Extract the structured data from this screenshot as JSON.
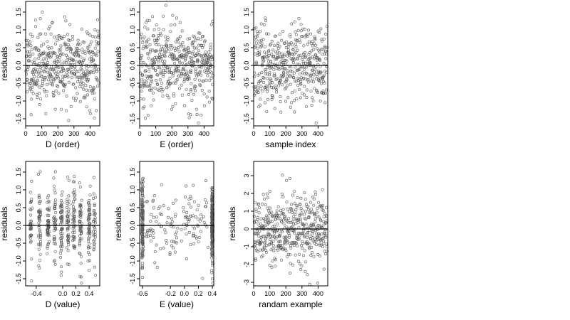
{
  "chart_data": [
    {
      "type": "scatter",
      "xlabel": "D (order)",
      "ylabel": "residuals",
      "xlim": [
        0,
        460
      ],
      "ylim": [
        -1.7,
        1.8
      ],
      "xticks": [
        0,
        100,
        200,
        300,
        400
      ],
      "yticks": [
        -1.5,
        -1.0,
        -0.5,
        0.0,
        0.5,
        1.0,
        1.5
      ],
      "ytick_labels": [
        "-1.5",
        "-1.0",
        "-0.5",
        "0.0",
        "0.5",
        "1.0",
        "1.5"
      ],
      "hline": 0,
      "point_count": 460,
      "x_kind": "index",
      "y_spread": 0.55,
      "seed": 11,
      "mark_color": "#555555"
    },
    {
      "type": "scatter",
      "xlabel": "E (order)",
      "ylabel": "residuals",
      "xlim": [
        0,
        460
      ],
      "ylim": [
        -1.7,
        1.8
      ],
      "xticks": [
        0,
        100,
        200,
        300,
        400
      ],
      "yticks": [
        -1.5,
        -1.0,
        -0.5,
        0.0,
        0.5,
        1.0,
        1.5
      ],
      "ytick_labels": [
        "-1.5",
        "-1.0",
        "-0.5",
        "0.0",
        "0.5",
        "1.0",
        "1.5"
      ],
      "hline": 0,
      "point_count": 460,
      "x_kind": "index",
      "y_spread": 0.55,
      "seed": 23,
      "mark_color": "#555555"
    },
    {
      "type": "scatter",
      "xlabel": "sample index",
      "ylabel": "residuals",
      "xlim": [
        0,
        460
      ],
      "ylim": [
        -1.7,
        1.8
      ],
      "xticks": [
        0,
        100,
        200,
        300,
        400
      ],
      "yticks": [
        -1.5,
        -1.0,
        -0.5,
        0.0,
        0.5,
        1.0,
        1.5
      ],
      "ytick_labels": [
        "-1.5",
        "-1.0",
        "-0.5",
        "0.0",
        "0.5",
        "1.0",
        "1.5"
      ],
      "hline": 0,
      "point_count": 460,
      "x_kind": "index",
      "y_spread": 0.55,
      "seed": 37,
      "mark_color": "#555555"
    },
    {
      "type": "scatter",
      "xlabel": "D (value)",
      "ylabel": "residuals",
      "xlim": [
        -0.56,
        0.56
      ],
      "ylim": [
        -1.7,
        1.8
      ],
      "xticks": [
        -0.4,
        0.0,
        0.2,
        0.4
      ],
      "xtick_labels": [
        "-0.4",
        "0.0",
        "0.2",
        "0.4"
      ],
      "yticks": [
        -1.5,
        -1.0,
        -0.5,
        0.0,
        0.5,
        1.0,
        1.5
      ],
      "ytick_labels": [
        "-1.5",
        "-1.0",
        "-0.5",
        "0.0",
        "0.5",
        "1.0",
        "1.5"
      ],
      "hline": 0,
      "point_count": 460,
      "x_kind": "clusters",
      "x_clusters": [
        -0.48,
        -0.35,
        -0.22,
        -0.12,
        -0.02,
        0.08,
        0.17,
        0.27,
        0.4,
        0.48
      ],
      "y_spread": 0.55,
      "seed": 53,
      "mark_color": "#555555"
    },
    {
      "type": "scatter",
      "xlabel": "E (value)",
      "ylabel": "residuals",
      "xlim": [
        -0.64,
        0.42
      ],
      "ylim": [
        -1.7,
        1.8
      ],
      "xticks": [
        -0.6,
        -0.2,
        0.0,
        0.2,
        0.4
      ],
      "xtick_labels": [
        "-0.6",
        "-0.2",
        "0.0",
        "0.2",
        "0.4"
      ],
      "yticks": [
        -1.5,
        -1.0,
        -0.5,
        0.0,
        0.5,
        1.0,
        1.5
      ],
      "ytick_labels": [
        "-1.5",
        "-1.0",
        "-0.5",
        "0.0",
        "0.5",
        "1.0",
        "1.5"
      ],
      "hline": 0,
      "point_count": 460,
      "x_kind": "ends",
      "x_left": -0.6,
      "x_right": 0.4,
      "y_spread": 0.55,
      "seed": 71,
      "mark_color": "#555555"
    },
    {
      "type": "scatter",
      "xlabel": "randam example",
      "ylabel": "residuals",
      "xlim": [
        0,
        460
      ],
      "ylim": [
        -3.2,
        3.8
      ],
      "xticks": [
        0,
        100,
        200,
        300,
        400
      ],
      "yticks": [
        -3,
        -2,
        -1,
        0,
        1,
        2,
        3
      ],
      "ytick_labels": [
        "-3",
        "-2",
        "-1",
        "0",
        "1",
        "2",
        "3"
      ],
      "hline": 0,
      "point_count": 460,
      "x_kind": "index",
      "y_spread": 1.0,
      "seed": 89,
      "mark_color": "#555555"
    }
  ]
}
